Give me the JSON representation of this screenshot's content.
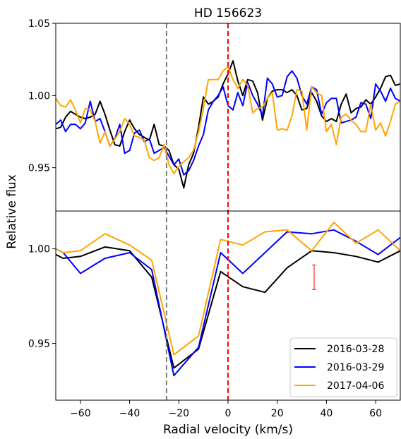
{
  "chart_data": {
    "type": "line",
    "title": "HD 156623",
    "xlabel": "Radial velocity (km/s)",
    "ylabel": "Relative flux",
    "xlim": [
      -70,
      70
    ],
    "xticks": [
      -60,
      -40,
      -20,
      0,
      20,
      40,
      60
    ],
    "xtick_labels": [
      "−60",
      "−40",
      "−20",
      "0",
      "20",
      "40",
      "60"
    ],
    "vlines": [
      {
        "x": -25,
        "color": "#808080",
        "style": "dashed"
      },
      {
        "x": 0,
        "color": "#ff0000",
        "style": "dashed"
      }
    ],
    "panels": [
      {
        "ylim": [
          0.92,
          1.05
        ],
        "yticks": [
          0.95,
          1.0,
          1.05
        ],
        "ytick_labels": [
          "0.95",
          "1.00",
          "1.05"
        ],
        "series": [
          {
            "name": "2016-03-28",
            "color": "#000000",
            "x": [
              -70,
              -68,
              -66,
              -64,
              -62,
              -60,
              -58,
              -56,
              -54,
              -52,
              -50,
              -48,
              -46,
              -44,
              -42,
              -40,
              -38,
              -36,
              -34,
              -32,
              -30,
              -28,
              -26,
              -24,
              -22,
              -20,
              -18,
              -16,
              -14,
              -12,
              -10,
              -8,
              -6,
              -4,
              -2,
              0,
              2,
              4,
              6,
              8,
              10,
              12,
              14,
              16,
              18,
              20,
              22,
              24,
              26,
              28,
              30,
              32,
              34,
              36,
              38,
              40,
              42,
              44,
              46,
              48,
              50,
              52,
              54,
              56,
              58,
              60,
              62,
              64,
              66,
              68,
              70
            ],
            "values": [
              0.977,
              0.978,
              0.985,
              0.989,
              0.987,
              0.985,
              0.984,
              0.985,
              0.987,
              0.996,
              0.987,
              0.976,
              0.966,
              0.965,
              0.975,
              0.983,
              0.977,
              0.973,
              0.971,
              0.969,
              0.98,
              0.966,
              0.965,
              0.962,
              0.952,
              0.949,
              0.936,
              0.952,
              0.96,
              0.978,
              0.999,
              0.994,
              0.996,
              0.999,
              1.008,
              1.015,
              1.024,
              1.01,
              1.0,
              1.011,
              1.01,
              1.002,
              0.983,
              0.998,
              1.003,
              1.004,
              1.004,
              1.002,
              1.004,
              1.0,
              0.99,
              0.991,
              1.002,
              0.996,
              0.986,
              0.982,
              0.984,
              0.982,
              0.994,
              1.001,
              0.988,
              0.991,
              0.992,
              0.997,
              0.994,
              0.999,
              1.005,
              1.013,
              1.014,
              1.007,
              1.008
            ]
          },
          {
            "name": "2016-03-29",
            "color": "#0000ff",
            "x": [
              -70,
              -68,
              -66,
              -64,
              -62,
              -60,
              -58,
              -56,
              -54,
              -52,
              -50,
              -48,
              -46,
              -44,
              -42,
              -40,
              -38,
              -36,
              -34,
              -32,
              -30,
              -28,
              -26,
              -24,
              -22,
              -20,
              -18,
              -16,
              -14,
              -12,
              -10,
              -8,
              -6,
              -4,
              -2,
              0,
              2,
              4,
              6,
              8,
              10,
              12,
              14,
              16,
              18,
              20,
              22,
              24,
              26,
              28,
              30,
              32,
              34,
              36,
              38,
              40,
              42,
              44,
              46,
              48,
              50,
              52,
              54,
              56,
              58,
              60,
              62,
              64,
              66,
              68,
              70
            ],
            "values": [
              0.98,
              0.983,
              0.975,
              0.98,
              0.98,
              0.977,
              0.981,
              0.996,
              0.982,
              0.984,
              0.975,
              0.965,
              0.97,
              0.98,
              0.96,
              0.962,
              0.974,
              0.976,
              0.968,
              0.97,
              0.96,
              0.962,
              0.964,
              0.958,
              0.952,
              0.956,
              0.945,
              0.948,
              0.955,
              0.965,
              0.973,
              0.99,
              0.996,
              1.0,
              1.006,
              0.993,
              0.99,
              1.002,
              0.993,
              1.009,
              1.0,
              0.994,
              0.986,
              1.012,
              1.008,
              0.999,
              1.0,
              1.013,
              1.017,
              1.012,
              1.0,
              0.994,
              1.006,
              1.004,
              0.987,
              0.995,
              0.998,
              0.998,
              0.981,
              0.982,
              0.983,
              0.985,
              0.995,
              0.994,
              0.984,
              1.008,
              1.003,
              0.996,
              1.005,
              0.998,
              0.996
            ]
          },
          {
            "name": "2017-04-06",
            "color": "#ffa500",
            "x": [
              -70,
              -68,
              -66,
              -64,
              -62,
              -60,
              -58,
              -56,
              -54,
              -52,
              -50,
              -48,
              -46,
              -44,
              -42,
              -40,
              -38,
              -36,
              -34,
              -32,
              -30,
              -28,
              -26,
              -24,
              -22,
              -20,
              -18,
              -16,
              -14,
              -12,
              -10,
              -8,
              -6,
              -4,
              -2,
              0,
              2,
              4,
              6,
              8,
              10,
              12,
              14,
              16,
              18,
              20,
              22,
              24,
              26,
              28,
              30,
              32,
              34,
              36,
              38,
              40,
              42,
              44,
              46,
              48,
              50,
              52,
              54,
              56,
              58,
              60,
              62,
              64,
              66,
              68,
              70
            ],
            "values": [
              0.998,
              0.993,
              0.992,
              0.997,
              0.99,
              0.981,
              0.991,
              0.99,
              0.982,
              0.967,
              0.975,
              0.965,
              0.97,
              0.975,
              0.984,
              0.98,
              0.972,
              0.971,
              0.969,
              0.957,
              0.955,
              0.957,
              0.966,
              0.952,
              0.946,
              0.951,
              0.954,
              0.957,
              0.962,
              0.975,
              0.991,
              1.011,
              1.011,
              1.011,
              1.017,
              1.02,
              1.011,
              1.005,
              1.011,
              1.007,
              0.988,
              0.991,
              0.992,
              0.998,
              1.002,
              0.976,
              0.977,
              0.976,
              0.986,
              1.004,
              1.003,
              0.976,
              1.006,
              1.002,
              1.0,
              0.975,
              0.98,
              0.966,
              0.985,
              0.987,
              0.983,
              0.98,
              0.975,
              0.975,
              0.994,
              0.976,
              0.981,
              0.972,
              0.982,
              0.994,
              0.996
            ]
          }
        ]
      },
      {
        "ylim": [
          0.92,
          1.02
        ],
        "yticks": [
          0.95,
          1.0
        ],
        "ytick_labels": [
          "0.95",
          "1.00"
        ],
        "series": [
          {
            "name": "2016-03-28",
            "color": "#000000",
            "x": [
              -70,
              -67,
              -60,
              -50,
              -40,
              -31,
              -22,
              -12,
              -3,
              6,
              15,
              24,
              34,
              43,
              52,
              61,
              70
            ],
            "values": [
              0.997,
              0.995,
              0.996,
              1.001,
              0.999,
              0.985,
              0.937,
              0.947,
              0.988,
              0.98,
              0.977,
              0.99,
              0.999,
              0.998,
              0.996,
              0.993,
              0.999
            ]
          },
          {
            "name": "2016-03-29",
            "color": "#0000ff",
            "x": [
              -70,
              -67,
              -60,
              -50,
              -40,
              -31,
              -22,
              -12,
              -3,
              6,
              15,
              24,
              34,
              43,
              52,
              61,
              70
            ],
            "values": [
              1.0,
              0.998,
              0.987,
              0.995,
              0.998,
              0.989,
              0.933,
              0.948,
              0.998,
              0.987,
              0.998,
              1.009,
              1.008,
              1.01,
              1.004,
              0.997,
              1.006
            ]
          },
          {
            "name": "2017-04-06",
            "color": "#ffa500",
            "x": [
              -70,
              -67,
              -60,
              -50,
              -40,
              -31,
              -22,
              -12,
              -3,
              6,
              15,
              24,
              34,
              43,
              52,
              61,
              70
            ],
            "values": [
              1.0,
              0.998,
              0.999,
              1.008,
              1.002,
              0.994,
              0.944,
              0.954,
              1.005,
              1.002,
              1.009,
              1.01,
              0.999,
              1.014,
              1.003,
              1.01,
              0.999
            ]
          }
        ],
        "errorbar": {
          "x": 35,
          "y": 0.985,
          "yerr": 0.0065,
          "color": "#ff0000"
        }
      }
    ],
    "legend": {
      "placement": "lower-right",
      "entries": [
        {
          "label": "2016-03-28",
          "color": "#000000"
        },
        {
          "label": "2016-03-29",
          "color": "#0000ff"
        },
        {
          "label": "2017-04-06",
          "color": "#ffa500"
        }
      ]
    }
  }
}
